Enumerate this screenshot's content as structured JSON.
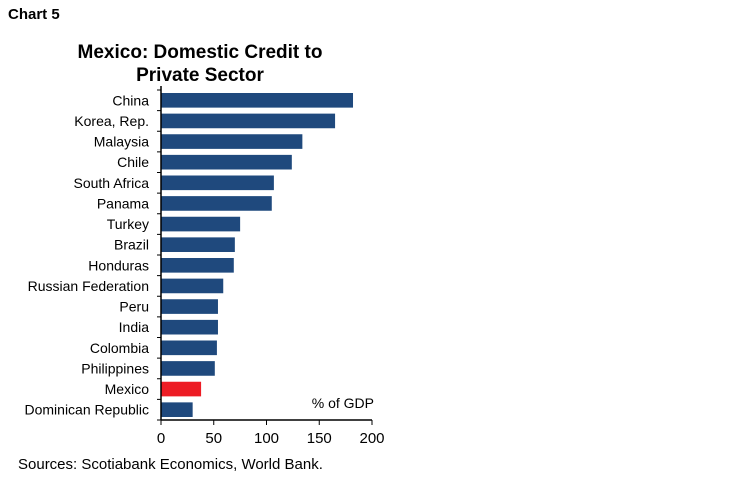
{
  "header": "Chart 5",
  "sources": "Sources: Scotiabank Economics, World Bank.",
  "chart_data": {
    "type": "bar",
    "orientation": "horizontal",
    "title": [
      "Mexico: Domestic Credit to",
      "Private Sector"
    ],
    "unit_label": "% of GDP",
    "categories": [
      "China",
      "Korea, Rep.",
      "Malaysia",
      "Chile",
      "South Africa",
      "Panama",
      "Turkey",
      "Brazil",
      "Honduras",
      "Russian Federation",
      "Peru",
      "India",
      "Colombia",
      "Philippines",
      "Mexico",
      "Dominican Republic"
    ],
    "values": [
      182,
      165,
      134,
      124,
      107,
      105,
      75,
      70,
      69,
      59,
      54,
      54,
      53,
      51,
      38,
      30
    ],
    "highlight": "Mexico",
    "colors": {
      "bar": "#1F497D",
      "highlight": "#ED1C24"
    },
    "xlim": [
      0,
      200
    ],
    "xticks": [
      0,
      50,
      100,
      150,
      200
    ],
    "grid": false
  }
}
